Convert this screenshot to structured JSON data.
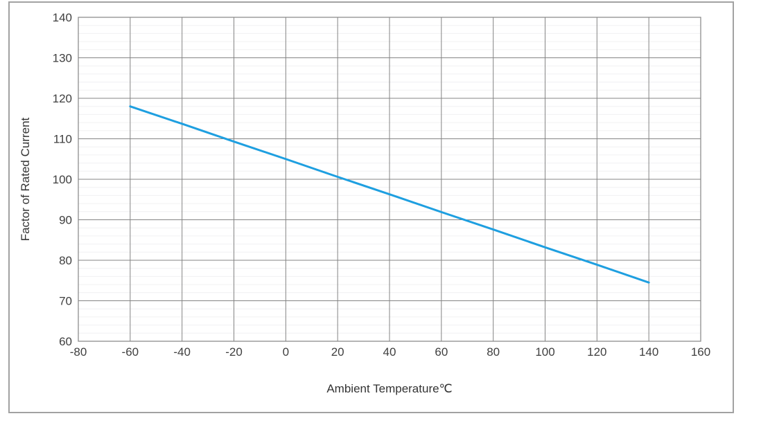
{
  "chart": {
    "x_axis_title": "Ambient Temperature℃",
    "y_axis_title": "Factor of Rated Current"
  },
  "colors": {
    "series_line": "#1e9fe0",
    "major_grid": "#848484",
    "minor_grid": "#f0f0f2",
    "outer_border": "#a2a2a2",
    "tick_label": "#3f3f3f",
    "axis_title": "#333333",
    "background": "#ffffff"
  },
  "chart_data": {
    "type": "line",
    "title": "",
    "xlabel": "Ambient Temperature℃",
    "ylabel": "Factor of Rated Current",
    "xlim": [
      -80,
      160
    ],
    "ylim": [
      60,
      140
    ],
    "x_ticks": [
      -80,
      -60,
      -40,
      -20,
      0,
      20,
      40,
      60,
      80,
      100,
      120,
      140,
      160
    ],
    "y_ticks": [
      60,
      70,
      80,
      90,
      100,
      110,
      120,
      130,
      140
    ],
    "y_minor_step": 2,
    "grid": true,
    "legend": false,
    "series": [
      {
        "name": "Factor of Rated Current",
        "color": "#1e9fe0",
        "x": [
          -60,
          -40,
          -20,
          0,
          20,
          40,
          60,
          80,
          100,
          120,
          140
        ],
        "y": [
          118,
          113.7,
          109.3,
          105,
          100.6,
          96.3,
          91.9,
          87.6,
          83.2,
          78.9,
          74.5
        ]
      }
    ]
  }
}
